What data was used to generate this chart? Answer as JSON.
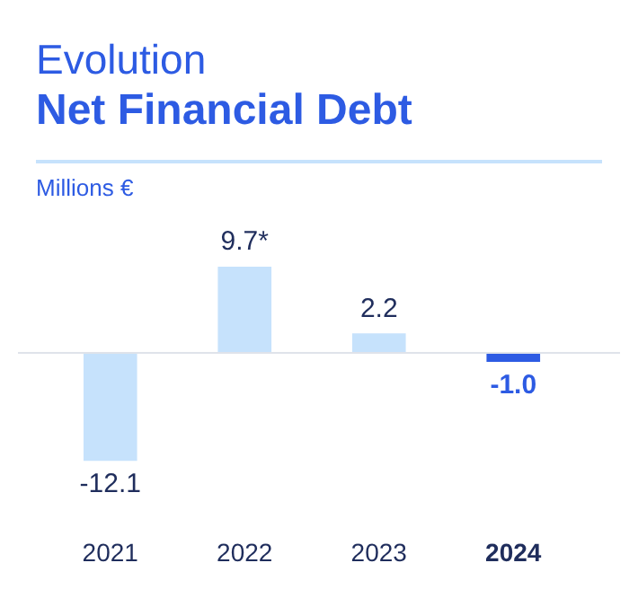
{
  "chart_data": {
    "type": "bar",
    "title": "Evolution",
    "subtitle": "Net Financial Debt",
    "ylabel": "Millions €",
    "categories": [
      "2021",
      "2022",
      "2023",
      "2024"
    ],
    "values": [
      -12.1,
      9.7,
      2.2,
      -1.0
    ],
    "value_labels": [
      "-12.1",
      "9.7*",
      "2.2",
      "-1.0"
    ],
    "colors": [
      "#c6e2fc",
      "#c6e2fc",
      "#c6e2fc",
      "#2d5be3"
    ],
    "grid": false,
    "legend": false
  }
}
